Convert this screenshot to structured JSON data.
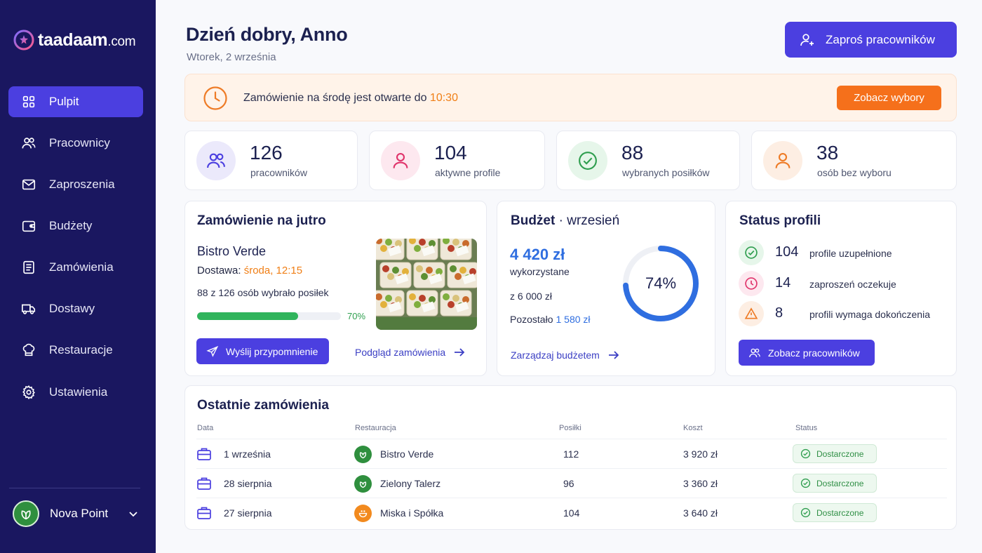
{
  "brand": {
    "name_bold": "taadaam",
    "name_domain": ".com"
  },
  "sidebar": {
    "items": [
      {
        "label": "Pulpit",
        "icon": "grid-icon",
        "active": true
      },
      {
        "label": "Pracownicy",
        "icon": "users-icon"
      },
      {
        "label": "Zaproszenia",
        "icon": "mail-icon"
      },
      {
        "label": "Budżety",
        "icon": "wallet-icon"
      },
      {
        "label": "Zamówienia",
        "icon": "list-icon"
      },
      {
        "label": "Dostawy",
        "icon": "truck-icon"
      },
      {
        "label": "Restauracje",
        "icon": "chef-hat-icon"
      },
      {
        "label": "Ustawienia",
        "icon": "gear-icon"
      }
    ],
    "org": {
      "name": "Nova Point"
    }
  },
  "header": {
    "greeting": "Dzień dobry, Anno",
    "date": "Wtorek, 2 września",
    "invite_label": "Zaproś pracowników"
  },
  "alert": {
    "text": "Zamówienie na środę jest otwarte do ",
    "time": "10:30",
    "button": "Zobacz wybory"
  },
  "stats": [
    {
      "value": "126",
      "label": "pracowników"
    },
    {
      "value": "104",
      "label": "aktywne profile"
    },
    {
      "value": "88",
      "label": "wybranych posiłków"
    },
    {
      "value": "38",
      "label": "osób bez wyboru"
    }
  ],
  "order": {
    "title": "Zamówienie na jutro",
    "restaurant": "Bistro Verde",
    "delivery_label": "Dostawa: ",
    "delivery_value": "środa, 12:15",
    "chosen_text": "88 z 126 osób wybrało posiłek",
    "progress": 0.7,
    "progress_label": "70%",
    "remind_label": "Wyślij przypomnienie",
    "preview_label": "Podgląd zamówienia"
  },
  "budget": {
    "title": "Budżet",
    "month": "wrzesień",
    "used": "4 420 zł",
    "used_label": "wykorzystane",
    "total": "z 6 000 zł",
    "remaining_label": "Pozostało",
    "remaining": "1 580 zł",
    "percent": 0.74,
    "percent_label": "74%",
    "manage_label": "Zarządzaj budżetem"
  },
  "profiles": {
    "title": "Status profili",
    "rows": [
      {
        "value": "104",
        "label": "profile uzupełnione",
        "status": "ok"
      },
      {
        "value": "14",
        "label": "zaproszeń oczekuje",
        "status": "pending"
      },
      {
        "value": "8",
        "label": "profili wymaga dokończenia",
        "status": "warning"
      }
    ],
    "button": "Zobacz pracowników"
  },
  "recent": {
    "title": "Ostatnie zamówienia",
    "columns": [
      "Data",
      "Restauracja",
      "Posiłki",
      "Koszt",
      "Status"
    ],
    "rows": [
      {
        "date": "1 września",
        "restaurant": "Bistro Verde",
        "meals": "112",
        "cost": "3 920 zł",
        "status": "Dostarczone"
      },
      {
        "date": "28 sierpnia",
        "restaurant": "Zielony Talerz",
        "meals": "96",
        "cost": "3 360 zł",
        "status": "Dostarczone"
      },
      {
        "date": "27 sierpnia",
        "restaurant": "Miska i Spółka",
        "meals": "104",
        "cost": "3 640 zł",
        "status": "Dostarczone"
      }
    ]
  },
  "colors": {
    "sidebar": "#1a1760",
    "primary": "#4b3fe0",
    "accent_orange": "#f5701b",
    "success": "#30b45c",
    "budget_blue": "#2f6ee0"
  }
}
